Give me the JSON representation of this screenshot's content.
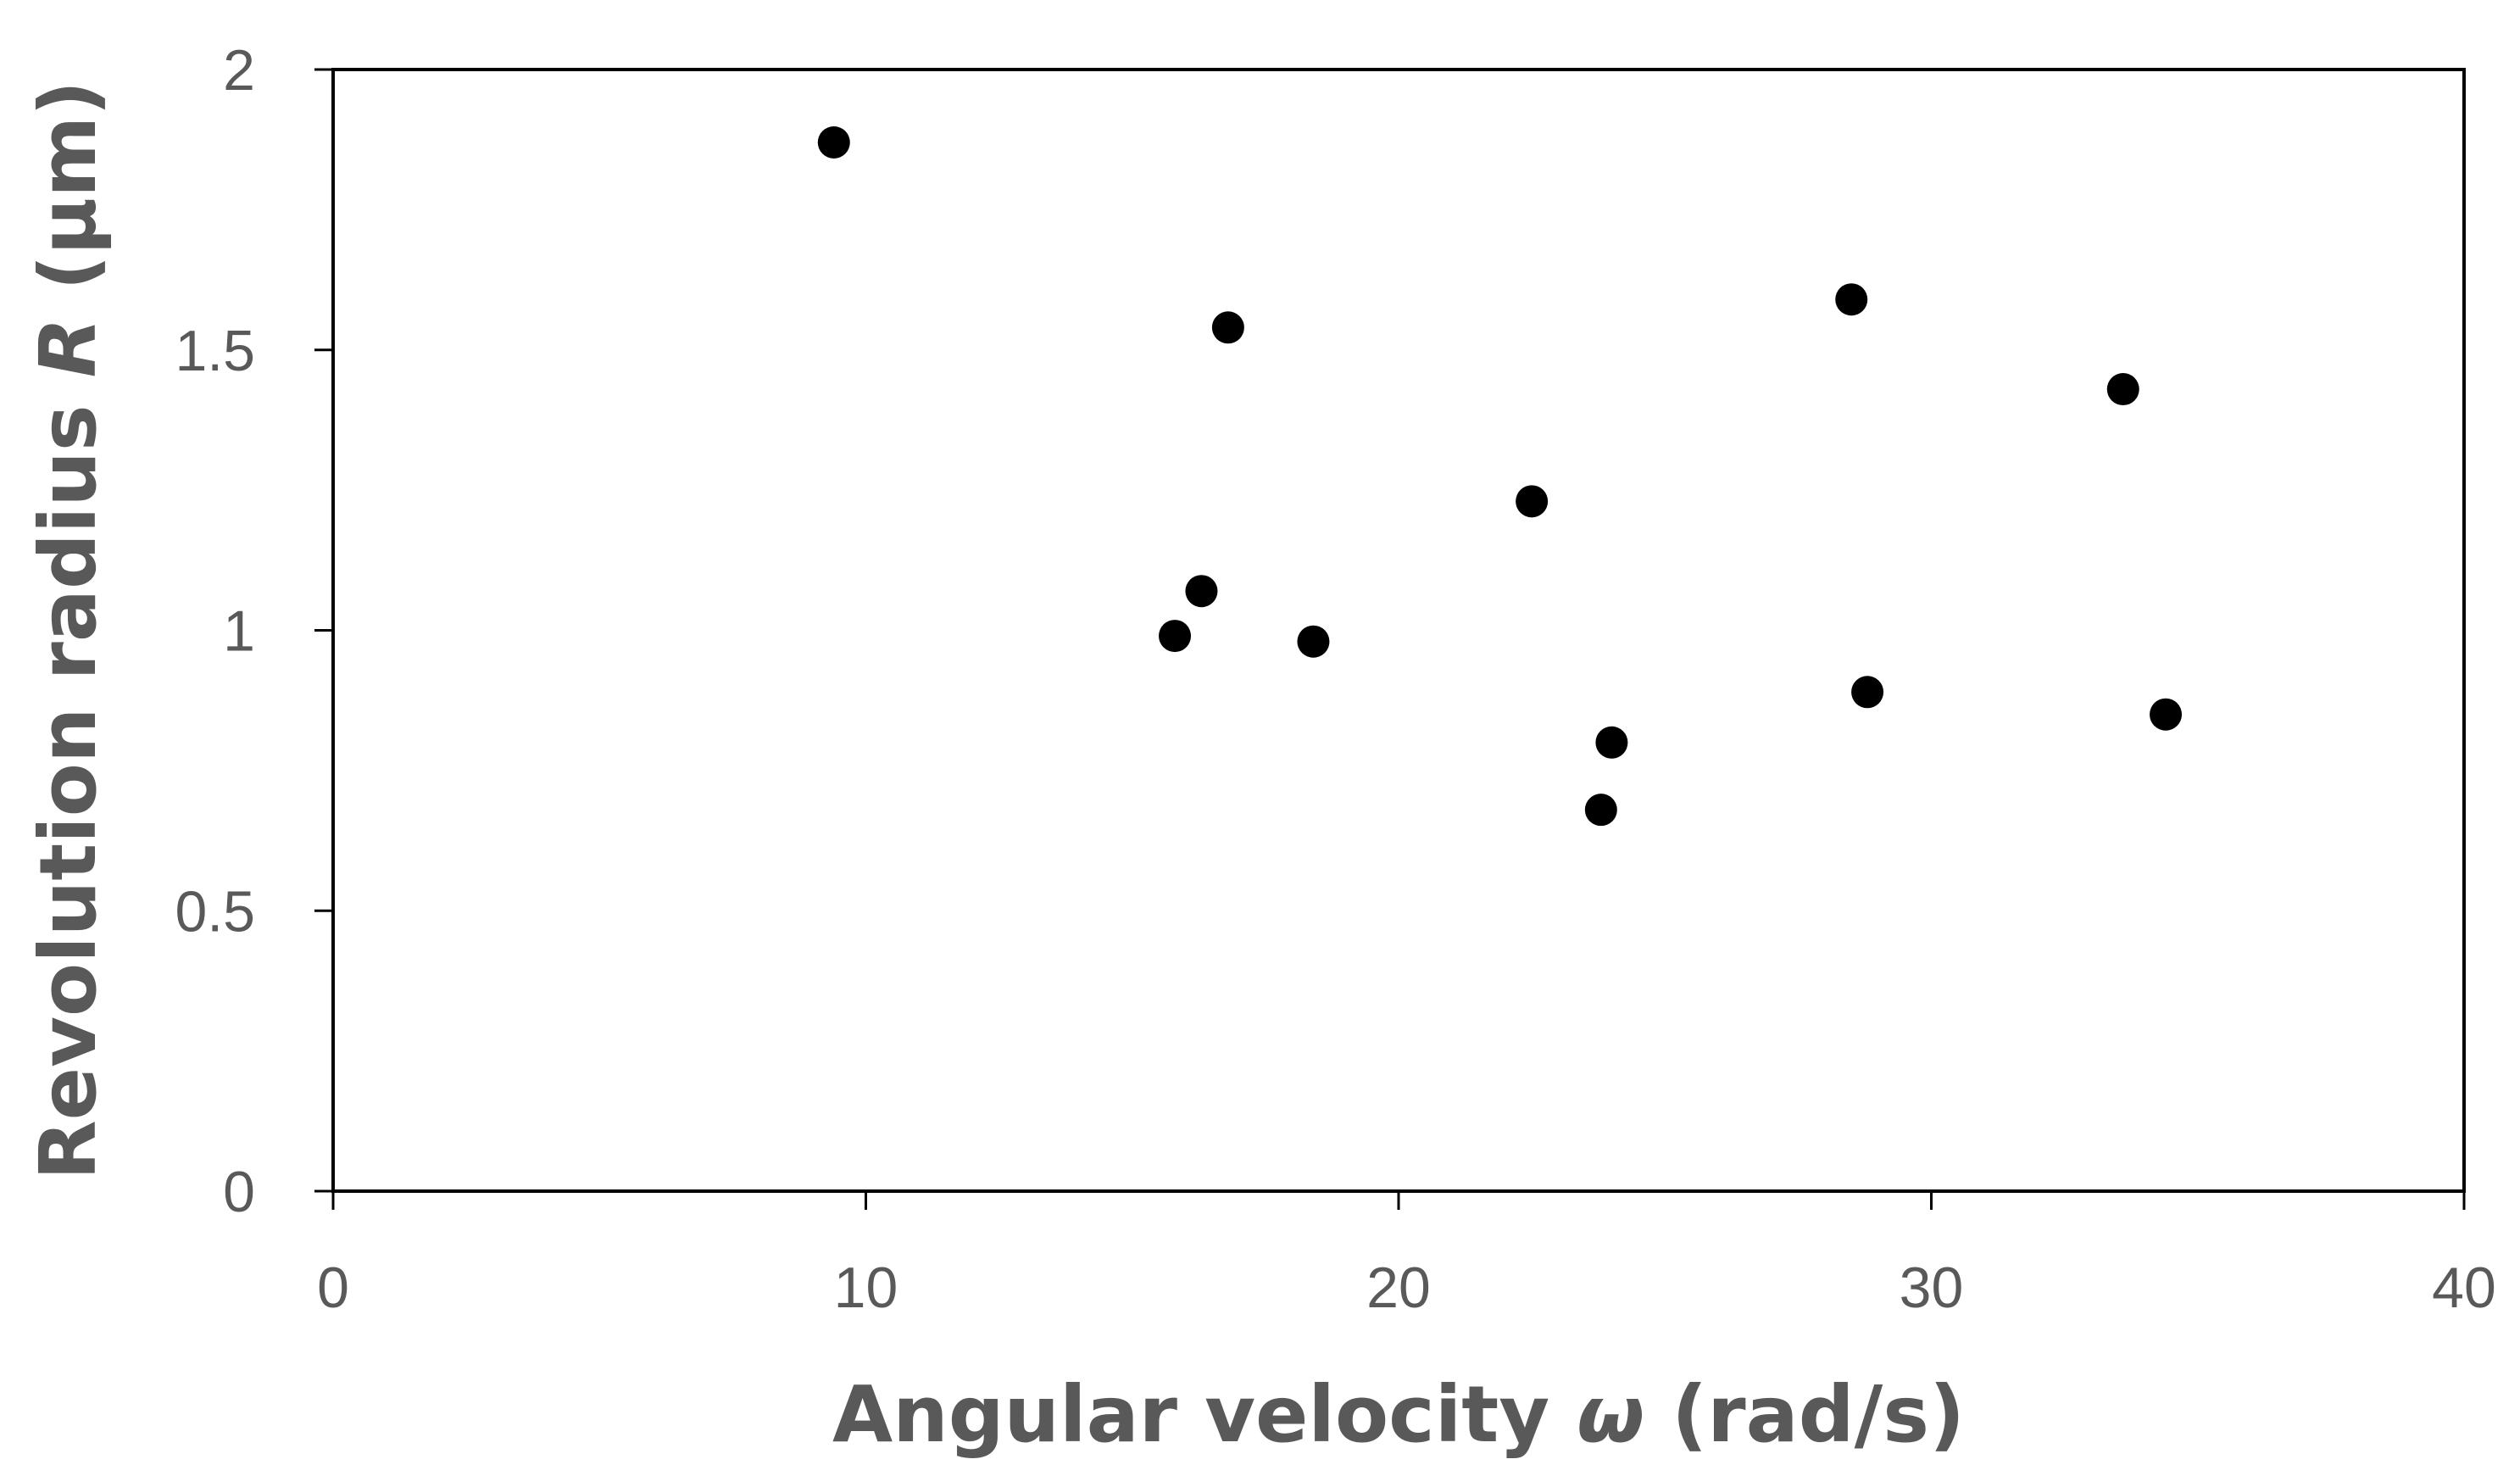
{
  "chart_data": {
    "type": "scatter",
    "title": "",
    "xlabel": {
      "prefix": "Angular velocity ",
      "symbol": "ω",
      "suffix": " (rad/s)"
    },
    "ylabel": {
      "prefix": "Revolution radius ",
      "symbol": "R",
      "suffix": " (µm)"
    },
    "xlim": [
      0,
      40
    ],
    "ylim": [
      0,
      2
    ],
    "xticks": [
      0,
      10,
      20,
      30,
      40
    ],
    "yticks": [
      0,
      0.5,
      1,
      1.5,
      2
    ],
    "xtick_labels": [
      "0",
      "10",
      "20",
      "30",
      "40"
    ],
    "ytick_labels": [
      "0",
      "0.5",
      "1",
      "1.5",
      "2"
    ],
    "grid": false,
    "legend": "none",
    "marker_color": "#000000",
    "axis_color": "#000000",
    "text_color": "#595959",
    "series": [
      {
        "x": [
          9.4,
          15.8,
          16.3,
          16.8,
          18.4,
          22.5,
          23.8,
          24.0,
          28.5,
          28.8,
          33.6,
          34.4
        ],
        "y": [
          1.87,
          0.99,
          1.07,
          1.54,
          0.98,
          1.23,
          0.68,
          0.8,
          1.59,
          0.89,
          1.43,
          0.85
        ]
      }
    ]
  }
}
